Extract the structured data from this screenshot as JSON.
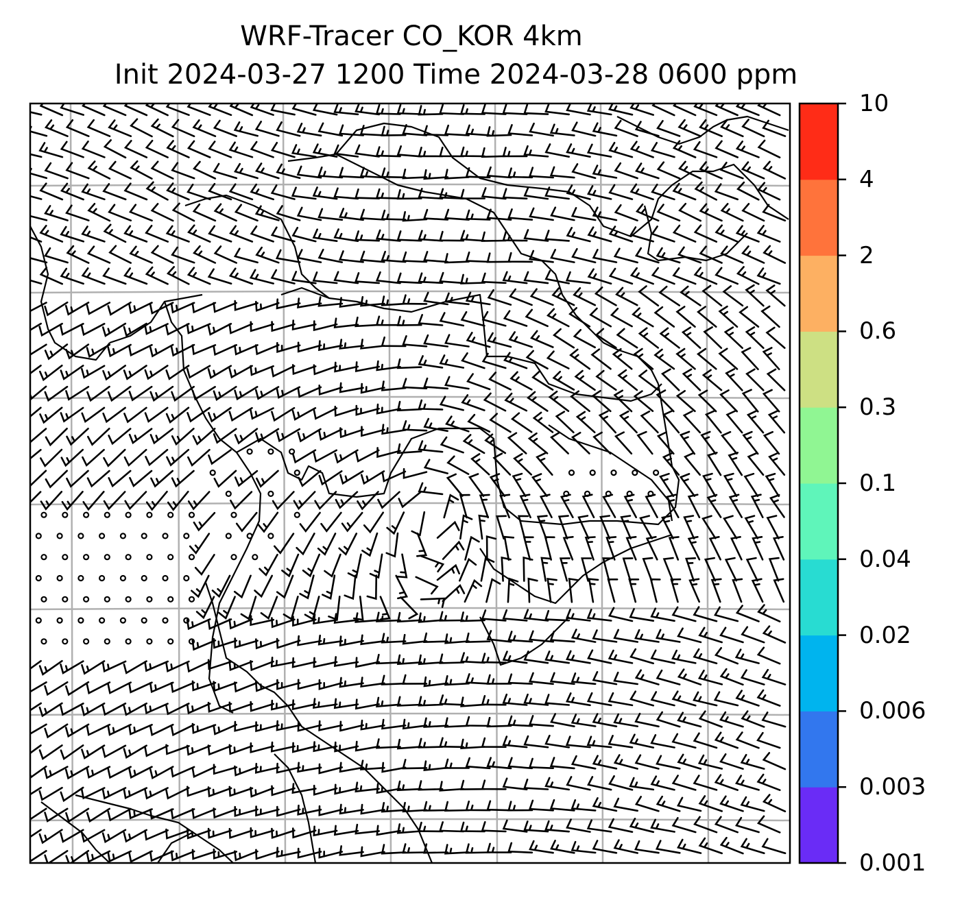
{
  "title": {
    "line1": "WRF-Tracer CO_KOR 4km",
    "line2": "Init 2024-03-27 1200 Time 2024-03-28 0600 ppm"
  },
  "colorbar": {
    "levels": [
      "0.001",
      "0.003",
      "0.006",
      "0.02",
      "0.04",
      "0.1",
      "0.3",
      "0.6",
      "2",
      "4",
      "10"
    ],
    "colors": [
      "#6a2cf6",
      "#3277ee",
      "#00b4ee",
      "#28dcd2",
      "#5ff5ba",
      "#90f693",
      "#cde083",
      "#fdb062",
      "#ff733b",
      "#ff2c17"
    ]
  },
  "map": {
    "field": "CO_KOR tracer concentration with wind barbs",
    "gridlines": true,
    "coastline_color": "#000000",
    "barb_color": "#000000"
  }
}
